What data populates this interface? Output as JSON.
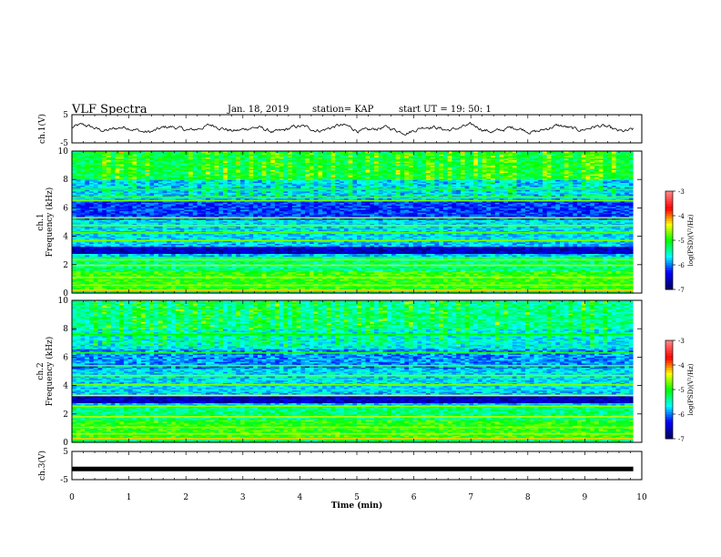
{
  "header": {
    "title": "VLF Spectra",
    "date": "Jan. 18, 2019",
    "station": "station= KAP",
    "start_time": "start UT =   19: 50: 1"
  },
  "colors": {
    "waveform": "#000000",
    "colormap": [
      "#000066",
      "#0000ff",
      "#00ffff",
      "#00ff00",
      "#ffff00",
      "#ff0000",
      "#ff8080"
    ]
  },
  "chart_data": [
    {
      "type": "line",
      "name": "ch1-waveform",
      "ylabel": "ch.1(V)",
      "ylim": [
        -5,
        5
      ],
      "yticks": [
        "5",
        "-5"
      ],
      "xlim": [
        0,
        10
      ],
      "approx_amplitude": 1.5
    },
    {
      "type": "heatmap",
      "name": "ch1-spectrogram",
      "ylabel_top": "ch.1",
      "ylabel": "Frequency (kHz)",
      "ylim": [
        0,
        10
      ],
      "yticks": [
        "0",
        "2",
        "4",
        "6",
        "8",
        "10"
      ],
      "xlim": [
        0,
        9.85
      ],
      "colorbar": {
        "label": "log(PSD)(V²/Hz)",
        "range": [
          -7,
          -3
        ],
        "ticks": [
          "-3",
          "-4",
          "-5",
          "-6",
          "-7"
        ]
      }
    },
    {
      "type": "heatmap",
      "name": "ch2-spectrogram",
      "ylabel_top": "ch.2",
      "ylabel": "Frequency (kHz)",
      "ylim": [
        0,
        10
      ],
      "yticks": [
        "0",
        "2",
        "4",
        "6",
        "8",
        "10"
      ],
      "xlim": [
        0,
        9.85
      ],
      "colorbar": {
        "label": "log(PSD)(V²/Hz)",
        "range": [
          -7,
          -3
        ],
        "ticks": [
          "-3",
          "-4",
          "-5",
          "-6",
          "-7"
        ]
      }
    },
    {
      "type": "line",
      "name": "ch3-trace",
      "ylabel": "ch.3(V)",
      "ylim": [
        -5,
        5
      ],
      "yticks": [
        "5",
        "-5"
      ],
      "xlim": [
        0,
        10
      ],
      "constant_value": -1.2
    }
  ],
  "xaxis": {
    "label": "Time (min)",
    "range": [
      0,
      10
    ],
    "ticks": [
      "0",
      "1",
      "2",
      "3",
      "4",
      "5",
      "6",
      "7",
      "8",
      "9",
      "10"
    ]
  }
}
